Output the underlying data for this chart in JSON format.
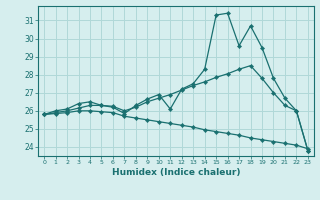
{
  "xlabel": "Humidex (Indice chaleur)",
  "xlim": [
    -0.5,
    23.5
  ],
  "ylim": [
    23.5,
    31.8
  ],
  "yticks": [
    24,
    25,
    26,
    27,
    28,
    29,
    30,
    31
  ],
  "xticks": [
    0,
    1,
    2,
    3,
    4,
    5,
    6,
    7,
    8,
    9,
    10,
    11,
    12,
    13,
    14,
    15,
    16,
    17,
    18,
    19,
    20,
    21,
    22,
    23
  ],
  "bg_color": "#d6eeee",
  "grid_color": "#b0d8d8",
  "line_color": "#1a7070",
  "line1_x": [
    0,
    1,
    2,
    3,
    4,
    5,
    6,
    7,
    8,
    9,
    10,
    11,
    12,
    13,
    14,
    15,
    16,
    17,
    18,
    19,
    20,
    21,
    22,
    23
  ],
  "line1_y": [
    25.8,
    26.0,
    26.1,
    26.4,
    26.5,
    26.3,
    26.2,
    25.85,
    26.3,
    26.65,
    26.9,
    26.1,
    27.2,
    27.5,
    28.3,
    31.3,
    31.4,
    29.6,
    30.7,
    29.5,
    27.8,
    26.7,
    26.0,
    23.8
  ],
  "line2_x": [
    0,
    1,
    2,
    3,
    4,
    5,
    6,
    7,
    8,
    9,
    10,
    11,
    12,
    13,
    14,
    15,
    16,
    17,
    18,
    19,
    20,
    21,
    22,
    23
  ],
  "line2_y": [
    25.8,
    25.9,
    26.0,
    26.15,
    26.3,
    26.3,
    26.25,
    26.0,
    26.2,
    26.5,
    26.7,
    26.9,
    27.15,
    27.4,
    27.6,
    27.85,
    28.05,
    28.3,
    28.5,
    27.8,
    27.0,
    26.3,
    26.0,
    23.8
  ],
  "line3_x": [
    0,
    1,
    2,
    3,
    4,
    5,
    6,
    7,
    8,
    9,
    10,
    11,
    12,
    13,
    14,
    15,
    16,
    17,
    18,
    19,
    20,
    21,
    22,
    23
  ],
  "line3_y": [
    25.8,
    25.85,
    25.9,
    26.0,
    26.0,
    25.95,
    25.9,
    25.7,
    25.6,
    25.5,
    25.4,
    25.3,
    25.2,
    25.1,
    24.95,
    24.85,
    24.75,
    24.65,
    24.5,
    24.4,
    24.3,
    24.2,
    24.1,
    23.9
  ]
}
